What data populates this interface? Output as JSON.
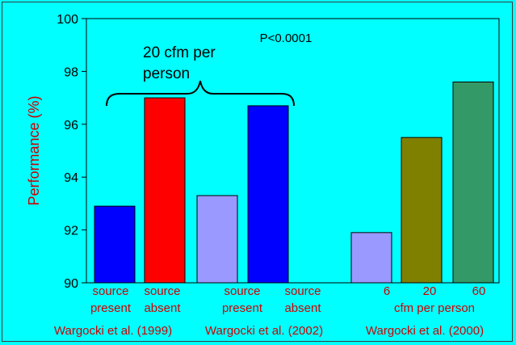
{
  "chart_data": {
    "type": "bar",
    "ylabel": "Performance (%)",
    "ylim": [
      90,
      100
    ],
    "yticks": [
      "90",
      "92",
      "94",
      "96",
      "98",
      "100"
    ],
    "annotation": "P<0.0001",
    "bracket_label_line1": "20 cfm per",
    "bracket_label_line2": "person",
    "bars": [
      {
        "value": 92.9,
        "color": "#0000ff"
      },
      {
        "value": 97.0,
        "color": "#ff0000"
      },
      {
        "value": 93.3,
        "color": "#9999ff"
      },
      {
        "value": 96.7,
        "color": "#0000ff"
      },
      {
        "value": 91.9,
        "color": "#9999ff"
      },
      {
        "value": 95.5,
        "color": "#808000"
      },
      {
        "value": 97.6,
        "color": "#339966"
      }
    ],
    "category_labels": [
      {
        "line1": "source",
        "line2": "present"
      },
      {
        "line1": "source",
        "line2": "absent"
      },
      {
        "line1": "source",
        "line2": "present"
      },
      {
        "line1": "source",
        "line2": "absent"
      },
      {
        "line1": "6",
        "line2": ""
      },
      {
        "line1": "20",
        "line2": ""
      },
      {
        "line1": "60",
        "line2": ""
      }
    ],
    "cfm_axis_label": "cfm per person",
    "studies": [
      "Wargocki et al. (1999)",
      "Wargocki et al. (2002)",
      "Wargocki et al. (2000)"
    ],
    "label_color": "#cc0000",
    "text_color": "#000000",
    "grid": false
  }
}
